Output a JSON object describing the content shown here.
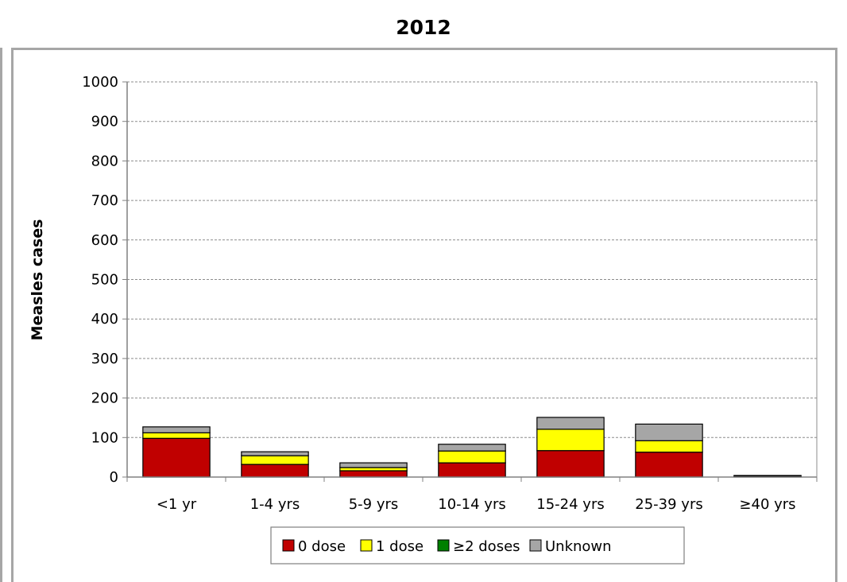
{
  "chart_data": {
    "type": "bar",
    "stacked": true,
    "title": "2012",
    "xlabel": "",
    "ylabel": "Measles cases",
    "ylim": [
      0,
      1000
    ],
    "yticks": [
      0,
      100,
      200,
      300,
      400,
      500,
      600,
      700,
      800,
      900,
      1000
    ],
    "grid": true,
    "legend_position": "bottom",
    "categories": [
      "<1 yr",
      "1-4 yrs",
      "5-9 yrs",
      "10-14 yrs",
      "15-24 yrs",
      "25-39 yrs",
      "≥40 yrs"
    ],
    "series": [
      {
        "name": "0 dose",
        "color": "#c00000",
        "values": [
          98,
          32,
          16,
          36,
          67,
          63,
          1
        ]
      },
      {
        "name": "1 dose",
        "color": "#ffff00",
        "values": [
          14,
          22,
          8,
          30,
          54,
          29,
          1
        ]
      },
      {
        "name": "≥2 doses",
        "color": "#008000",
        "values": [
          0,
          0,
          0,
          0,
          0,
          0,
          0
        ]
      },
      {
        "name": "Unknown",
        "color": "#a6a6a6",
        "values": [
          15,
          10,
          12,
          17,
          30,
          42,
          2
        ]
      }
    ]
  }
}
